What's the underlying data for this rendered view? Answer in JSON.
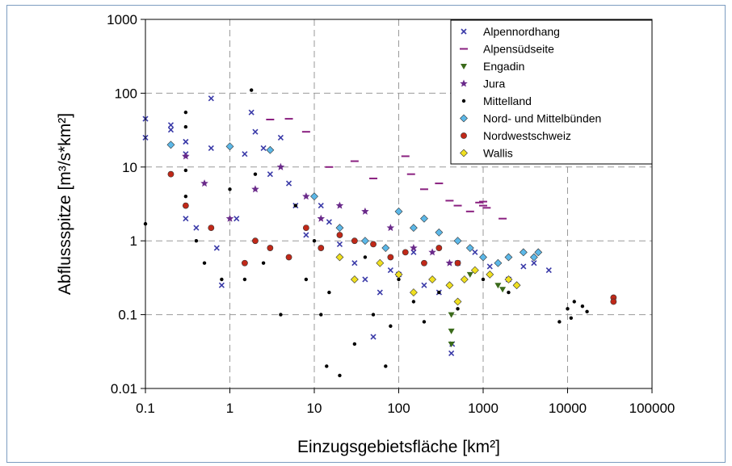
{
  "chart_data": {
    "type": "scatter",
    "title": "",
    "xlabel": "Einzugsgebietsfläche [km²]",
    "ylabel": "Abflussspitze [m³/s*km²]",
    "x_scale": "log",
    "y_scale": "log",
    "xlim": [
      0.1,
      100000
    ],
    "ylim": [
      0.01,
      1000
    ],
    "x_ticks": [
      "0.1",
      "1",
      "10",
      "100",
      "1000",
      "10000",
      "100000"
    ],
    "y_ticks": [
      "0.01",
      "0.1",
      "1",
      "10",
      "100",
      "1000"
    ],
    "grid": "dashed major gridlines",
    "legend_position": "top-right",
    "series": [
      {
        "name": "Alpennordhang",
        "marker": "x",
        "color": "#3a3aa8",
        "points": [
          [
            0.1,
            45
          ],
          [
            0.1,
            25
          ],
          [
            0.2,
            37
          ],
          [
            0.2,
            32
          ],
          [
            0.3,
            22
          ],
          [
            0.3,
            15
          ],
          [
            0.3,
            2
          ],
          [
            0.4,
            1.5
          ],
          [
            0.6,
            85
          ],
          [
            0.6,
            18
          ],
          [
            0.7,
            0.8
          ],
          [
            0.8,
            0.25
          ],
          [
            1.2,
            2
          ],
          [
            1.5,
            15
          ],
          [
            1.8,
            55
          ],
          [
            2,
            30
          ],
          [
            2.5,
            18
          ],
          [
            3,
            8
          ],
          [
            4,
            25
          ],
          [
            5,
            6
          ],
          [
            6,
            3
          ],
          [
            8,
            1.2
          ],
          [
            12,
            3
          ],
          [
            15,
            1.8
          ],
          [
            20,
            0.9
          ],
          [
            30,
            0.5
          ],
          [
            40,
            0.3
          ],
          [
            50,
            0.05
          ],
          [
            60,
            0.2
          ],
          [
            80,
            0.4
          ],
          [
            100,
            0.35
          ],
          [
            150,
            0.7
          ],
          [
            200,
            0.25
          ],
          [
            300,
            0.2
          ],
          [
            420,
            0.03
          ],
          [
            430,
            0.04
          ],
          [
            500,
            0.5
          ],
          [
            800,
            0.7
          ],
          [
            1200,
            0.45
          ],
          [
            2000,
            0.3
          ],
          [
            3000,
            0.45
          ],
          [
            4000,
            0.5
          ],
          [
            6000,
            0.4
          ]
        ]
      },
      {
        "name": "Alpensüdseite",
        "marker": "dash",
        "color": "#8a2080",
        "points": [
          [
            3,
            44
          ],
          [
            5,
            45
          ],
          [
            8,
            30
          ],
          [
            15,
            10
          ],
          [
            30,
            12
          ],
          [
            50,
            7
          ],
          [
            120,
            14
          ],
          [
            140,
            8
          ],
          [
            200,
            5
          ],
          [
            300,
            6
          ],
          [
            400,
            3.5
          ],
          [
            500,
            3
          ],
          [
            700,
            2.5
          ],
          [
            900,
            3.3
          ],
          [
            1000,
            3.4
          ],
          [
            1000,
            3
          ],
          [
            1100,
            2.8
          ],
          [
            1700,
            2
          ]
        ]
      },
      {
        "name": "Engadin",
        "marker": "triangle-down",
        "color": "#3a6a1a",
        "points": [
          [
            420,
            0.1
          ],
          [
            420,
            0.06
          ],
          [
            420,
            0.04
          ],
          [
            700,
            0.35
          ],
          [
            1500,
            0.25
          ],
          [
            1700,
            0.22
          ]
        ]
      },
      {
        "name": "Jura",
        "marker": "star",
        "color": "#6a2a8a",
        "points": [
          [
            0.3,
            14
          ],
          [
            0.5,
            6
          ],
          [
            1,
            2
          ],
          [
            2,
            5
          ],
          [
            4,
            10
          ],
          [
            8,
            4
          ],
          [
            12,
            2
          ],
          [
            20,
            3
          ],
          [
            40,
            2.5
          ],
          [
            80,
            1.5
          ],
          [
            150,
            0.8
          ],
          [
            250,
            0.7
          ],
          [
            400,
            0.5
          ]
        ]
      },
      {
        "name": "Mittelland",
        "marker": "dot",
        "color": "#000000",
        "points": [
          [
            0.1,
            1.7
          ],
          [
            0.3,
            55
          ],
          [
            0.3,
            35
          ],
          [
            0.3,
            9
          ],
          [
            0.3,
            4
          ],
          [
            0.4,
            1
          ],
          [
            0.5,
            0.5
          ],
          [
            0.8,
            0.3
          ],
          [
            1,
            5
          ],
          [
            1.5,
            0.3
          ],
          [
            1.8,
            110
          ],
          [
            2,
            8
          ],
          [
            2.5,
            0.5
          ],
          [
            4,
            0.1
          ],
          [
            6,
            3
          ],
          [
            8,
            0.3
          ],
          [
            10,
            1
          ],
          [
            12,
            0.1
          ],
          [
            14,
            0.02
          ],
          [
            15,
            0.2
          ],
          [
            20,
            0.015
          ],
          [
            30,
            0.04
          ],
          [
            40,
            0.6
          ],
          [
            50,
            0.1
          ],
          [
            70,
            0.02
          ],
          [
            80,
            0.07
          ],
          [
            100,
            0.3
          ],
          [
            150,
            0.15
          ],
          [
            200,
            0.08
          ],
          [
            300,
            0.2
          ],
          [
            500,
            0.12
          ],
          [
            1000,
            0.3
          ],
          [
            2000,
            0.2
          ],
          [
            8000,
            0.08
          ],
          [
            10000,
            0.12
          ],
          [
            11000,
            0.09
          ],
          [
            12000,
            0.15
          ],
          [
            15000,
            0.13
          ],
          [
            17000,
            0.11
          ]
        ]
      },
      {
        "name": "Nord- und Mittelbünden",
        "marker": "diamond",
        "color": "#5cb8e8",
        "points": [
          [
            0.2,
            20
          ],
          [
            1,
            19
          ],
          [
            3,
            17
          ],
          [
            10,
            4
          ],
          [
            20,
            1.5
          ],
          [
            40,
            1
          ],
          [
            70,
            0.8
          ],
          [
            100,
            2.5
          ],
          [
            150,
            1.5
          ],
          [
            200,
            2
          ],
          [
            300,
            1.3
          ],
          [
            500,
            1
          ],
          [
            700,
            0.8
          ],
          [
            1000,
            0.6
          ],
          [
            1500,
            0.5
          ],
          [
            2000,
            0.6
          ],
          [
            3000,
            0.7
          ],
          [
            4000,
            0.6
          ],
          [
            4500,
            0.7
          ]
        ]
      },
      {
        "name": "Nordwestschweiz",
        "marker": "circle",
        "color": "#c02818",
        "points": [
          [
            0.2,
            8
          ],
          [
            0.3,
            3
          ],
          [
            0.6,
            1.5
          ],
          [
            1.5,
            0.5
          ],
          [
            2,
            1
          ],
          [
            3,
            0.8
          ],
          [
            5,
            0.6
          ],
          [
            8,
            1.5
          ],
          [
            12,
            0.8
          ],
          [
            20,
            1.2
          ],
          [
            30,
            1
          ],
          [
            50,
            0.9
          ],
          [
            80,
            0.6
          ],
          [
            120,
            0.7
          ],
          [
            200,
            0.5
          ],
          [
            300,
            0.8
          ],
          [
            500,
            0.5
          ],
          [
            35000,
            0.17
          ],
          [
            35000,
            0.15
          ]
        ]
      },
      {
        "name": "Wallis",
        "marker": "diamond",
        "color": "#f0e020",
        "points": [
          [
            20,
            0.6
          ],
          [
            30,
            0.3
          ],
          [
            60,
            0.5
          ],
          [
            100,
            0.35
          ],
          [
            150,
            0.2
          ],
          [
            250,
            0.3
          ],
          [
            400,
            0.25
          ],
          [
            500,
            0.15
          ],
          [
            600,
            0.3
          ],
          [
            800,
            0.4
          ],
          [
            1200,
            0.35
          ],
          [
            2000,
            0.3
          ],
          [
            2500,
            0.25
          ]
        ]
      }
    ]
  },
  "legend": {
    "items": [
      {
        "label": "Alpennordhang",
        "marker": "x",
        "color": "#3a3aa8"
      },
      {
        "label": "Alpensüdseite",
        "marker": "dash",
        "color": "#8a2080"
      },
      {
        "label": "Engadin",
        "marker": "triangle-down",
        "color": "#3a6a1a"
      },
      {
        "label": "Jura",
        "marker": "star",
        "color": "#6a2a8a"
      },
      {
        "label": "Mittelland",
        "marker": "dot",
        "color": "#000000"
      },
      {
        "label": "Nord- und Mittelbünden",
        "marker": "diamond",
        "color": "#5cb8e8"
      },
      {
        "label": "Nordwestschweiz",
        "marker": "circle",
        "color": "#c02818"
      },
      {
        "label": "Wallis",
        "marker": "diamond",
        "color": "#f0e020"
      }
    ]
  },
  "colors": {
    "frame": "#7c9cc0",
    "grid": "#9a9a9a",
    "axis": "#000000"
  }
}
